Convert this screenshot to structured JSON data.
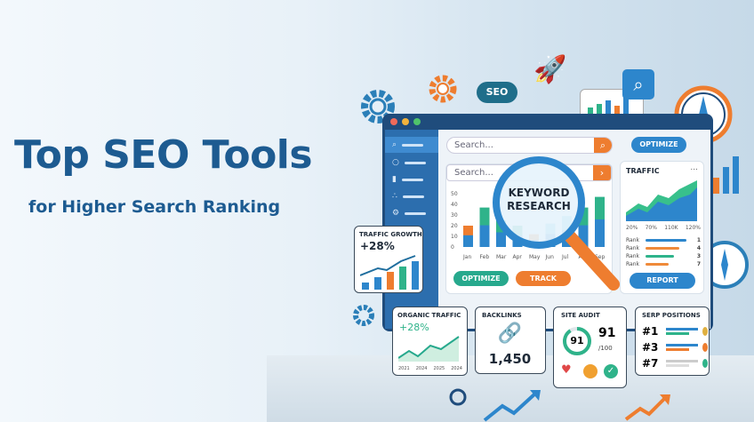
{
  "hero": {
    "title": "Top SEO Tools",
    "subtitle": "for Higher Search Ranking"
  },
  "floating": {
    "seo_bubble": "SEO"
  },
  "dashboard": {
    "top_search_placeholder": "Search...",
    "optimize_top": "OPTIMIZE",
    "inner_search_placeholder": "Search...",
    "magnifier_text": "KEYWORD\nRESEARCH",
    "bar_chart": {
      "y_ticks": [
        "50",
        "40",
        "30",
        "20",
        "10",
        "0"
      ],
      "months": [
        "Jan",
        "Feb",
        "Mar",
        "Apr",
        "May",
        "Jun",
        "Jul",
        "Aug",
        "Sep"
      ]
    },
    "optimize_button": "OPTIMIZE",
    "track_button": "TRACK",
    "traffic": {
      "title": "TRAFFIC",
      "menu": "...",
      "x_ticks": [
        "20%",
        "70%",
        "110K",
        "120%"
      ],
      "ranks": [
        {
          "label": "Rank",
          "value": "1",
          "color": "#2d86cc"
        },
        {
          "label": "Rank",
          "value": "4",
          "color": "#ef8a3a"
        },
        {
          "label": "Rank",
          "value": "3",
          "color": "#2fb38a"
        },
        {
          "label": "Rank",
          "value": "7",
          "color": "#ef8a3a"
        }
      ],
      "report_button": "REPORT"
    }
  },
  "traffic_growth": {
    "title": "TRAFFIC GROWTH",
    "value": "+28%"
  },
  "organic_traffic": {
    "title": "ORGANIC TRAFFIC",
    "value": "+28%",
    "x_ticks": [
      "2021",
      "2024",
      "2025",
      "2024"
    ]
  },
  "backlinks": {
    "title": "BACKLINKS",
    "value": "1,450"
  },
  "site_audit": {
    "title": "SITE AUDIT",
    "score": "91",
    "score_big": "91",
    "out_of": "/100"
  },
  "serp": {
    "title": "SERP POSITIONS",
    "positions": [
      "#1",
      "#3",
      "#7"
    ]
  },
  "colors": {
    "primary": "#1d5b91",
    "orange": "#ee7d2f",
    "green": "#2fb38a",
    "blue": "#2d86cc"
  }
}
